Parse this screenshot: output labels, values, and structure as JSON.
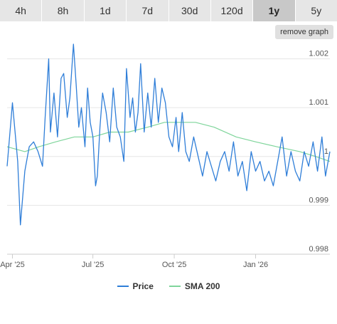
{
  "tabs": [
    {
      "label": "4h",
      "active": false
    },
    {
      "label": "8h",
      "active": false
    },
    {
      "label": "1d",
      "active": false
    },
    {
      "label": "7d",
      "active": false
    },
    {
      "label": "30d",
      "active": false
    },
    {
      "label": "120d",
      "active": false
    },
    {
      "label": "1y",
      "active": true
    },
    {
      "label": "5y",
      "active": false
    }
  ],
  "remove_graph_label": "remove graph",
  "colors": {
    "price": "#2f7ed8",
    "sma": "#7fd59b",
    "grid": "#e6e6e6",
    "axis_text": "#555555"
  },
  "chart_data": {
    "type": "line",
    "x_axis": {
      "type": "date",
      "tick_labels": [
        "Apr '25",
        "Jul '25",
        "Oct '25",
        "Jan '26"
      ],
      "tick_dates": [
        "2025-04-01",
        "2025-07-01",
        "2025-10-01",
        "2026-01-01"
      ],
      "range": [
        "2025-03-26",
        "2026-03-26"
      ]
    },
    "y_axis": {
      "ylim": [
        0.998,
        1.0023
      ],
      "ticks": [
        0.998,
        0.999,
        1,
        1.001,
        1.002
      ],
      "tick_labels": [
        "0.998",
        "0.999",
        "1",
        "1.001",
        "1.002"
      ],
      "position": "right"
    },
    "grid": true,
    "legend_placement": "bottom-center",
    "series": [
      {
        "name": "Price",
        "color": "#2f7ed8",
        "points": [
          [
            "2025-03-26",
            0.9998
          ],
          [
            "2025-04-01",
            1.0011
          ],
          [
            "2025-04-07",
            0.9999
          ],
          [
            "2025-04-10",
            0.9986
          ],
          [
            "2025-04-15",
            0.9997
          ],
          [
            "2025-04-20",
            1.0002
          ],
          [
            "2025-04-25",
            1.0003
          ],
          [
            "2025-04-30",
            1.0001
          ],
          [
            "2025-05-05",
            0.9998
          ],
          [
            "2025-05-08",
            1.0008
          ],
          [
            "2025-05-12",
            1.002
          ],
          [
            "2025-05-14",
            1.0005
          ],
          [
            "2025-05-18",
            1.0013
          ],
          [
            "2025-05-22",
            1.0004
          ],
          [
            "2025-05-26",
            1.0016
          ],
          [
            "2025-05-29",
            1.0017
          ],
          [
            "2025-06-02",
            1.0008
          ],
          [
            "2025-06-05",
            1.0012
          ],
          [
            "2025-06-09",
            1.0023
          ],
          [
            "2025-06-12",
            1.0015
          ],
          [
            "2025-06-15",
            1.0006
          ],
          [
            "2025-06-18",
            1.001
          ],
          [
            "2025-06-22",
            1.0002
          ],
          [
            "2025-06-25",
            1.0014
          ],
          [
            "2025-06-28",
            1.0007
          ],
          [
            "2025-07-01",
            1.0004
          ],
          [
            "2025-07-04",
            0.9994
          ],
          [
            "2025-07-06",
            0.9996
          ],
          [
            "2025-07-09",
            1.0006
          ],
          [
            "2025-07-12",
            1.0013
          ],
          [
            "2025-07-16",
            1.0009
          ],
          [
            "2025-07-20",
            1.0003
          ],
          [
            "2025-07-24",
            1.0014
          ],
          [
            "2025-07-28",
            1.0006
          ],
          [
            "2025-08-01",
            1.0004
          ],
          [
            "2025-08-05",
            0.9999
          ],
          [
            "2025-08-08",
            1.0018
          ],
          [
            "2025-08-12",
            1.0008
          ],
          [
            "2025-08-15",
            1.0012
          ],
          [
            "2025-08-18",
            1.0005
          ],
          [
            "2025-08-21",
            1.0009
          ],
          [
            "2025-08-24",
            1.0019
          ],
          [
            "2025-08-28",
            1.0005
          ],
          [
            "2025-09-01",
            1.0013
          ],
          [
            "2025-09-05",
            1.0006
          ],
          [
            "2025-09-09",
            1.0016
          ],
          [
            "2025-09-13",
            1.0007
          ],
          [
            "2025-09-17",
            1.0014
          ],
          [
            "2025-09-21",
            1.0011
          ],
          [
            "2025-09-25",
            1.0004
          ],
          [
            "2025-09-29",
            1.0002
          ],
          [
            "2025-10-03",
            1.0008
          ],
          [
            "2025-10-06",
            1.0001
          ],
          [
            "2025-10-10",
            1.0009
          ],
          [
            "2025-10-14",
            1.0001
          ],
          [
            "2025-10-18",
            0.9999
          ],
          [
            "2025-10-23",
            1.0004
          ],
          [
            "2025-10-28",
            1.0
          ],
          [
            "2025-11-02",
            0.9996
          ],
          [
            "2025-11-07",
            1.0001
          ],
          [
            "2025-11-12",
            0.9998
          ],
          [
            "2025-11-17",
            0.9995
          ],
          [
            "2025-11-22",
            0.9999
          ],
          [
            "2025-11-27",
            1.0001
          ],
          [
            "2025-12-02",
            0.9997
          ],
          [
            "2025-12-07",
            1.0003
          ],
          [
            "2025-12-12",
            0.9996
          ],
          [
            "2025-12-17",
            0.9999
          ],
          [
            "2025-12-22",
            0.9993
          ],
          [
            "2025-12-27",
            1.0001
          ],
          [
            "2026-01-01",
            0.9997
          ],
          [
            "2026-01-06",
            0.9999
          ],
          [
            "2026-01-11",
            0.9995
          ],
          [
            "2026-01-16",
            0.9997
          ],
          [
            "2026-01-21",
            0.9994
          ],
          [
            "2026-01-26",
            0.9999
          ],
          [
            "2026-01-31",
            1.0004
          ],
          [
            "2026-02-05",
            0.9996
          ],
          [
            "2026-02-10",
            1.0001
          ],
          [
            "2026-02-15",
            0.9997
          ],
          [
            "2026-02-20",
            0.9995
          ],
          [
            "2026-02-25",
            1.0001
          ],
          [
            "2026-03-02",
            0.9998
          ],
          [
            "2026-03-07",
            1.0003
          ],
          [
            "2026-03-12",
            0.9997
          ],
          [
            "2026-03-17",
            1.0004
          ],
          [
            "2026-03-21",
            0.9996
          ],
          [
            "2026-03-26",
            1.0001
          ]
        ]
      },
      {
        "name": "SMA 200",
        "color": "#7fd59b",
        "points": [
          [
            "2025-03-26",
            1.0002
          ],
          [
            "2025-04-15",
            1.0001
          ],
          [
            "2025-05-01",
            1.0002
          ],
          [
            "2025-05-20",
            1.0003
          ],
          [
            "2025-06-10",
            1.0004
          ],
          [
            "2025-07-01",
            1.0004
          ],
          [
            "2025-07-20",
            1.0005
          ],
          [
            "2025-08-10",
            1.0005
          ],
          [
            "2025-09-01",
            1.0006
          ],
          [
            "2025-09-20",
            1.0007
          ],
          [
            "2025-10-05",
            1.0007
          ],
          [
            "2025-10-25",
            1.0007
          ],
          [
            "2025-11-15",
            1.0006
          ],
          [
            "2025-12-10",
            1.0004
          ],
          [
            "2026-01-01",
            1.0003
          ],
          [
            "2026-01-25",
            1.0002
          ],
          [
            "2026-02-20",
            1.0001
          ],
          [
            "2026-03-10",
            1.0
          ],
          [
            "2026-03-26",
            0.9999
          ]
        ]
      }
    ]
  }
}
